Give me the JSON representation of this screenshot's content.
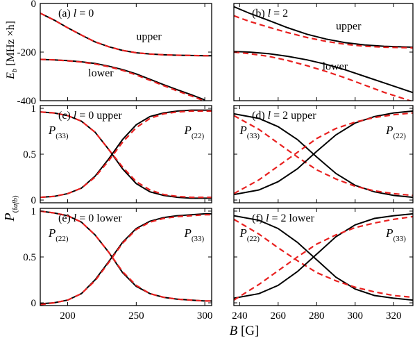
{
  "figure": {
    "ylabel_top": "E_b [MHz×h]",
    "ylabel_top_main": "E",
    "ylabel_top_sub": "b",
    "ylabel_top_rest": " [MHz ×h]",
    "ylabel_bottom_main": "P",
    "ylabel_bottom_sub": "(f",
    "ylabel_bottom_sub2": "a",
    "ylabel_bottom_sub3": "f",
    "ylabel_bottom_sub4": "b",
    "ylabel_bottom_sub5": ")",
    "xlabel_main": "B",
    "xlabel_unit": " [G]"
  },
  "colors": {
    "solid": "#000000",
    "dashed": "#e8201f"
  },
  "chart_data": [
    {
      "id": "a",
      "type": "line",
      "panel_label": "(a) l = 0",
      "label_prefix": "(a) ",
      "label_var": "l",
      "label_rest": " = 0",
      "xlim": [
        180,
        305
      ],
      "ylim": [
        -400,
        0
      ],
      "yticks": [
        -400,
        -200,
        0
      ],
      "ytick_labels": [
        "-400",
        "-200",
        "0"
      ],
      "xticks": [
        200,
        250,
        300
      ],
      "annotations": [
        {
          "text": "upper",
          "x": 250,
          "y": -150
        },
        {
          "text": "lower",
          "x": 215,
          "y": -300
        }
      ],
      "series": [
        {
          "style": "solid",
          "x": [
            180,
            190,
            200,
            210,
            220,
            230,
            240,
            250,
            260,
            270,
            280,
            290,
            300,
            305
          ],
          "y": [
            -40,
            -68,
            -100,
            -130,
            -158,
            -178,
            -193,
            -203,
            -208,
            -211,
            -213,
            -214,
            -215,
            -215
          ]
        },
        {
          "style": "dashed",
          "x": [
            180,
            190,
            200,
            210,
            220,
            230,
            240,
            250,
            260,
            270,
            280,
            290,
            300,
            305
          ],
          "y": [
            -40,
            -68,
            -100,
            -130,
            -158,
            -178,
            -193,
            -203,
            -208,
            -211,
            -213,
            -214,
            -215,
            -215
          ]
        },
        {
          "style": "solid",
          "x": [
            180,
            190,
            200,
            210,
            220,
            230,
            240,
            250,
            260,
            270,
            280,
            290,
            300
          ],
          "y": [
            -230,
            -232,
            -235,
            -240,
            -247,
            -258,
            -272,
            -290,
            -312,
            -334,
            -355,
            -375,
            -397
          ]
        },
        {
          "style": "dashed",
          "x": [
            180,
            190,
            200,
            210,
            220,
            230,
            240,
            250,
            260,
            270,
            280,
            290,
            300
          ],
          "y": [
            -230,
            -232,
            -236,
            -241,
            -249,
            -260,
            -275,
            -294,
            -316,
            -338,
            -360,
            -380,
            -402
          ]
        }
      ]
    },
    {
      "id": "b",
      "type": "line",
      "panel_label": "(b) l = 2",
      "label_prefix": "(b) ",
      "label_var": "l",
      "label_rest": " = 2",
      "xlim": [
        237,
        330
      ],
      "ylim": [
        -300,
        0
      ],
      "yticks": [
        -300,
        -150,
        0
      ],
      "xticks": [
        240,
        260,
        280,
        300,
        320
      ],
      "annotations": [
        {
          "text": "upper",
          "x": 290,
          "y": -80
        },
        {
          "text": "lower",
          "x": 283,
          "y": -205
        }
      ],
      "series": [
        {
          "style": "solid",
          "x": [
            237,
            245,
            255,
            265,
            275,
            285,
            295,
            305,
            315,
            330
          ],
          "y": [
            -10,
            -30,
            -52,
            -75,
            -95,
            -110,
            -121,
            -128,
            -132,
            -135
          ]
        },
        {
          "style": "dashed",
          "x": [
            237,
            245,
            255,
            265,
            275,
            285,
            295,
            305,
            315,
            330
          ],
          "y": [
            -38,
            -55,
            -73,
            -90,
            -105,
            -117,
            -126,
            -132,
            -135,
            -137
          ]
        },
        {
          "style": "solid",
          "x": [
            237,
            245,
            255,
            265,
            275,
            285,
            295,
            305,
            315,
            330
          ],
          "y": [
            -148,
            -150,
            -155,
            -163,
            -174,
            -188,
            -205,
            -225,
            -245,
            -275
          ]
        },
        {
          "style": "dashed",
          "x": [
            237,
            245,
            255,
            265,
            275,
            285,
            295,
            305,
            315,
            330
          ],
          "y": [
            -150,
            -155,
            -163,
            -176,
            -192,
            -210,
            -230,
            -252,
            -274,
            -303
          ]
        }
      ]
    },
    {
      "id": "c",
      "type": "line",
      "panel_label": "(c) l = 0 upper",
      "label_prefix": "(c) ",
      "label_var": "l",
      "label_rest": " = 0 upper",
      "xlim": [
        180,
        305
      ],
      "ylim": [
        -0.03,
        1.03
      ],
      "yticks": [
        0,
        0.5,
        1
      ],
      "ytick_labels": [
        "0",
        "0.5",
        "1"
      ],
      "xticks": [
        200,
        250,
        300
      ],
      "annotations": [
        {
          "main": "P",
          "sub": "(33)",
          "x": 186,
          "y": 0.72
        },
        {
          "main": "P",
          "sub": "(22)",
          "x": 285,
          "y": 0.72
        }
      ],
      "series": [
        {
          "style": "solid",
          "x": [
            180,
            190,
            200,
            210,
            220,
            230,
            240,
            250,
            260,
            270,
            280,
            290,
            300,
            305
          ],
          "y": [
            0.96,
            0.95,
            0.92,
            0.86,
            0.74,
            0.55,
            0.34,
            0.18,
            0.09,
            0.05,
            0.03,
            0.02,
            0.02,
            0.02
          ]
        },
        {
          "style": "dashed",
          "x": [
            180,
            190,
            200,
            210,
            220,
            230,
            240,
            250,
            260,
            270,
            280,
            290,
            300,
            305
          ],
          "y": [
            0.96,
            0.95,
            0.92,
            0.86,
            0.74,
            0.55,
            0.36,
            0.2,
            0.11,
            0.06,
            0.04,
            0.03,
            0.03,
            0.03
          ]
        },
        {
          "style": "solid",
          "x": [
            180,
            190,
            200,
            210,
            220,
            230,
            240,
            250,
            260,
            270,
            280,
            290,
            300,
            305
          ],
          "y": [
            0.03,
            0.04,
            0.07,
            0.13,
            0.26,
            0.45,
            0.66,
            0.82,
            0.91,
            0.95,
            0.97,
            0.98,
            0.98,
            0.98
          ]
        },
        {
          "style": "dashed",
          "x": [
            180,
            190,
            200,
            210,
            220,
            230,
            240,
            250,
            260,
            270,
            280,
            290,
            300,
            305
          ],
          "y": [
            0.03,
            0.04,
            0.07,
            0.13,
            0.25,
            0.43,
            0.63,
            0.79,
            0.89,
            0.94,
            0.96,
            0.97,
            0.97,
            0.97
          ]
        }
      ]
    },
    {
      "id": "d",
      "type": "line",
      "panel_label": "(d) l = 2 upper",
      "label_prefix": "(d) ",
      "label_var": "l",
      "label_rest": " = 2 upper",
      "xlim": [
        237,
        330
      ],
      "ylim": [
        -0.03,
        1.03
      ],
      "yticks": [
        0,
        0.5,
        1
      ],
      "xticks": [
        240,
        260,
        280,
        300,
        320
      ],
      "annotations": [
        {
          "main": "P",
          "sub": "(33)",
          "x": 240,
          "y": 0.72
        },
        {
          "main": "P",
          "sub": "(22)",
          "x": 316,
          "y": 0.72
        }
      ],
      "series": [
        {
          "style": "solid",
          "x": [
            237,
            250,
            260,
            270,
            280,
            290,
            300,
            310,
            320,
            330
          ],
          "y": [
            0.94,
            0.89,
            0.8,
            0.66,
            0.47,
            0.29,
            0.16,
            0.09,
            0.05,
            0.03
          ]
        },
        {
          "style": "dashed",
          "x": [
            237,
            250,
            260,
            270,
            280,
            290,
            300,
            310,
            320,
            330
          ],
          "y": [
            0.92,
            0.77,
            0.62,
            0.47,
            0.33,
            0.23,
            0.15,
            0.1,
            0.07,
            0.05
          ]
        },
        {
          "style": "solid",
          "x": [
            237,
            250,
            260,
            270,
            280,
            290,
            300,
            310,
            320,
            330
          ],
          "y": [
            0.06,
            0.11,
            0.2,
            0.34,
            0.53,
            0.71,
            0.84,
            0.91,
            0.95,
            0.97
          ]
        },
        {
          "style": "dashed",
          "x": [
            237,
            250,
            260,
            270,
            280,
            290,
            300,
            310,
            320,
            330
          ],
          "y": [
            0.07,
            0.22,
            0.37,
            0.52,
            0.67,
            0.78,
            0.85,
            0.9,
            0.93,
            0.95
          ]
        }
      ]
    },
    {
      "id": "e",
      "type": "line",
      "panel_label": "(e) l = 0 lower",
      "label_prefix": "(e) ",
      "label_var": "l",
      "label_rest": " = 0 lower",
      "xlim": [
        180,
        305
      ],
      "ylim": [
        -0.03,
        1.03
      ],
      "yticks": [
        0,
        0.5,
        1
      ],
      "xticks": [
        200,
        250,
        300
      ],
      "xtick_labels": [
        "200",
        "250",
        "300"
      ],
      "annotations": [
        {
          "main": "P",
          "sub": "(22)",
          "x": 186,
          "y": 0.72
        },
        {
          "main": "P",
          "sub": "(33)",
          "x": 285,
          "y": 0.72
        }
      ],
      "series": [
        {
          "style": "solid",
          "x": [
            180,
            190,
            200,
            210,
            220,
            230,
            240,
            250,
            260,
            270,
            280,
            290,
            300,
            305
          ],
          "y": [
            1.0,
            0.98,
            0.95,
            0.88,
            0.74,
            0.55,
            0.33,
            0.18,
            0.1,
            0.06,
            0.04,
            0.03,
            0.02,
            0.02
          ]
        },
        {
          "style": "dashed",
          "x": [
            180,
            190,
            200,
            210,
            220,
            230,
            240,
            250,
            260,
            270,
            280,
            290,
            300,
            305
          ],
          "y": [
            1.0,
            0.98,
            0.95,
            0.88,
            0.74,
            0.55,
            0.34,
            0.19,
            0.1,
            0.06,
            0.04,
            0.03,
            0.02,
            0.02
          ]
        },
        {
          "style": "solid",
          "x": [
            180,
            190,
            200,
            210,
            220,
            230,
            240,
            250,
            260,
            270,
            280,
            290,
            300,
            305
          ],
          "y": [
            -0.01,
            0.0,
            0.03,
            0.1,
            0.25,
            0.45,
            0.66,
            0.81,
            0.89,
            0.93,
            0.95,
            0.96,
            0.97,
            0.97
          ]
        },
        {
          "style": "dashed",
          "x": [
            180,
            190,
            200,
            210,
            220,
            230,
            240,
            250,
            260,
            270,
            280,
            290,
            300,
            305
          ],
          "y": [
            -0.02,
            0.0,
            0.03,
            0.1,
            0.24,
            0.44,
            0.65,
            0.8,
            0.88,
            0.92,
            0.94,
            0.95,
            0.96,
            0.96
          ]
        }
      ]
    },
    {
      "id": "f",
      "type": "line",
      "panel_label": "(f) l = 2 lower",
      "label_prefix": "(f) ",
      "label_var": "l",
      "label_rest": " = 2 lower",
      "xlim": [
        237,
        330
      ],
      "ylim": [
        -0.03,
        1.03
      ],
      "yticks": [
        0,
        0.5,
        1
      ],
      "xticks": [
        240,
        260,
        280,
        300,
        320
      ],
      "xtick_labels": [
        "240",
        "260",
        "280",
        "300",
        "320"
      ],
      "annotations": [
        {
          "main": "P",
          "sub": "(22)",
          "x": 240,
          "y": 0.72
        },
        {
          "main": "P",
          "sub": "(33)",
          "x": 316,
          "y": 0.72
        }
      ],
      "series": [
        {
          "style": "solid",
          "x": [
            237,
            250,
            260,
            270,
            280,
            290,
            300,
            310,
            320,
            330
          ],
          "y": [
            0.95,
            0.9,
            0.81,
            0.66,
            0.47,
            0.28,
            0.15,
            0.08,
            0.05,
            0.03
          ]
        },
        {
          "style": "dashed",
          "x": [
            237,
            250,
            260,
            270,
            280,
            290,
            300,
            310,
            320,
            330
          ],
          "y": [
            0.91,
            0.75,
            0.6,
            0.46,
            0.33,
            0.24,
            0.17,
            0.12,
            0.08,
            0.06
          ]
        },
        {
          "style": "solid",
          "x": [
            237,
            250,
            260,
            270,
            280,
            290,
            300,
            310,
            320,
            330
          ],
          "y": [
            0.05,
            0.1,
            0.19,
            0.34,
            0.53,
            0.72,
            0.85,
            0.92,
            0.95,
            0.97
          ]
        },
        {
          "style": "dashed",
          "x": [
            237,
            250,
            260,
            270,
            280,
            290,
            300,
            310,
            320,
            330
          ],
          "y": [
            0.03,
            0.2,
            0.35,
            0.5,
            0.64,
            0.74,
            0.82,
            0.87,
            0.91,
            0.94
          ]
        }
      ]
    }
  ]
}
